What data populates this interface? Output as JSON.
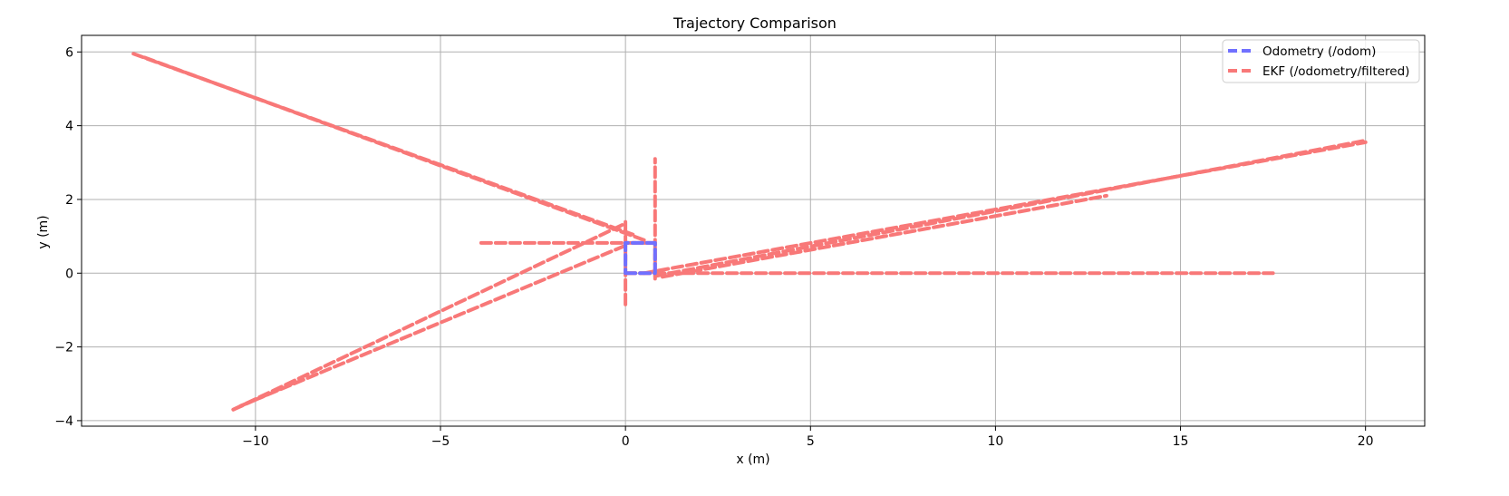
{
  "chart_data": {
    "type": "line",
    "title": "Trajectory Comparison",
    "xlabel": "x (m)",
    "ylabel": "y (m)",
    "xlim": [
      -14.7,
      21.6
    ],
    "ylim": [
      -4.15,
      6.45
    ],
    "xticks": [
      -10,
      -5,
      0,
      5,
      10,
      15,
      20
    ],
    "yticks": [
      -4,
      -2,
      0,
      2,
      4,
      6
    ],
    "xtick_labels": [
      "−10",
      "−5",
      "0",
      "5",
      "10",
      "15",
      "20"
    ],
    "ytick_labels": [
      "−4",
      "−2",
      "0",
      "2",
      "4",
      "6"
    ],
    "grid": true,
    "legend_position": "top-right",
    "series": [
      {
        "name": "Odometry (/odom)",
        "color": "#7070ff",
        "style": "dashed",
        "segments": [
          [
            [
              0.0,
              0.0
            ],
            [
              0.8,
              0.0
            ],
            [
              0.8,
              0.82
            ],
            [
              0.0,
              0.82
            ],
            [
              0.0,
              0.0
            ]
          ]
        ]
      },
      {
        "name": "EKF (/odometry/filtered)",
        "color": "#f87878",
        "style": "dashed",
        "segments": [
          [
            [
              0.0,
              0.0
            ],
            [
              17.5,
              0.0
            ]
          ],
          [
            [
              -3.9,
              0.82
            ],
            [
              0.8,
              0.82
            ]
          ],
          [
            [
              0.8,
              -0.15
            ],
            [
              0.8,
              3.1
            ]
          ],
          [
            [
              0.0,
              -0.85
            ],
            [
              0.0,
              1.4
            ]
          ],
          [
            [
              0.0,
              0.0
            ],
            [
              0.8,
              0.0
            ],
            [
              0.8,
              0.82
            ],
            [
              0.0,
              0.82
            ],
            [
              0.0,
              0.0
            ]
          ],
          [
            [
              -13.3,
              5.95
            ],
            [
              0.2,
              1.05
            ]
          ],
          [
            [
              -13.0,
              5.85
            ],
            [
              0.5,
              0.9
            ]
          ],
          [
            [
              0.5,
              0.0
            ],
            [
              20.0,
              3.55
            ]
          ],
          [
            [
              0.8,
              -0.08
            ],
            [
              20.0,
              3.6
            ]
          ],
          [
            [
              1.0,
              -0.1
            ],
            [
              13.0,
              2.1
            ]
          ],
          [
            [
              -10.6,
              -3.7
            ],
            [
              0.0,
              1.35
            ]
          ],
          [
            [
              -10.4,
              -3.6
            ],
            [
              0.0,
              0.75
            ]
          ],
          [
            [
              -10.6,
              -3.7
            ],
            [
              -8.8,
              -2.9
            ]
          ]
        ]
      }
    ]
  }
}
